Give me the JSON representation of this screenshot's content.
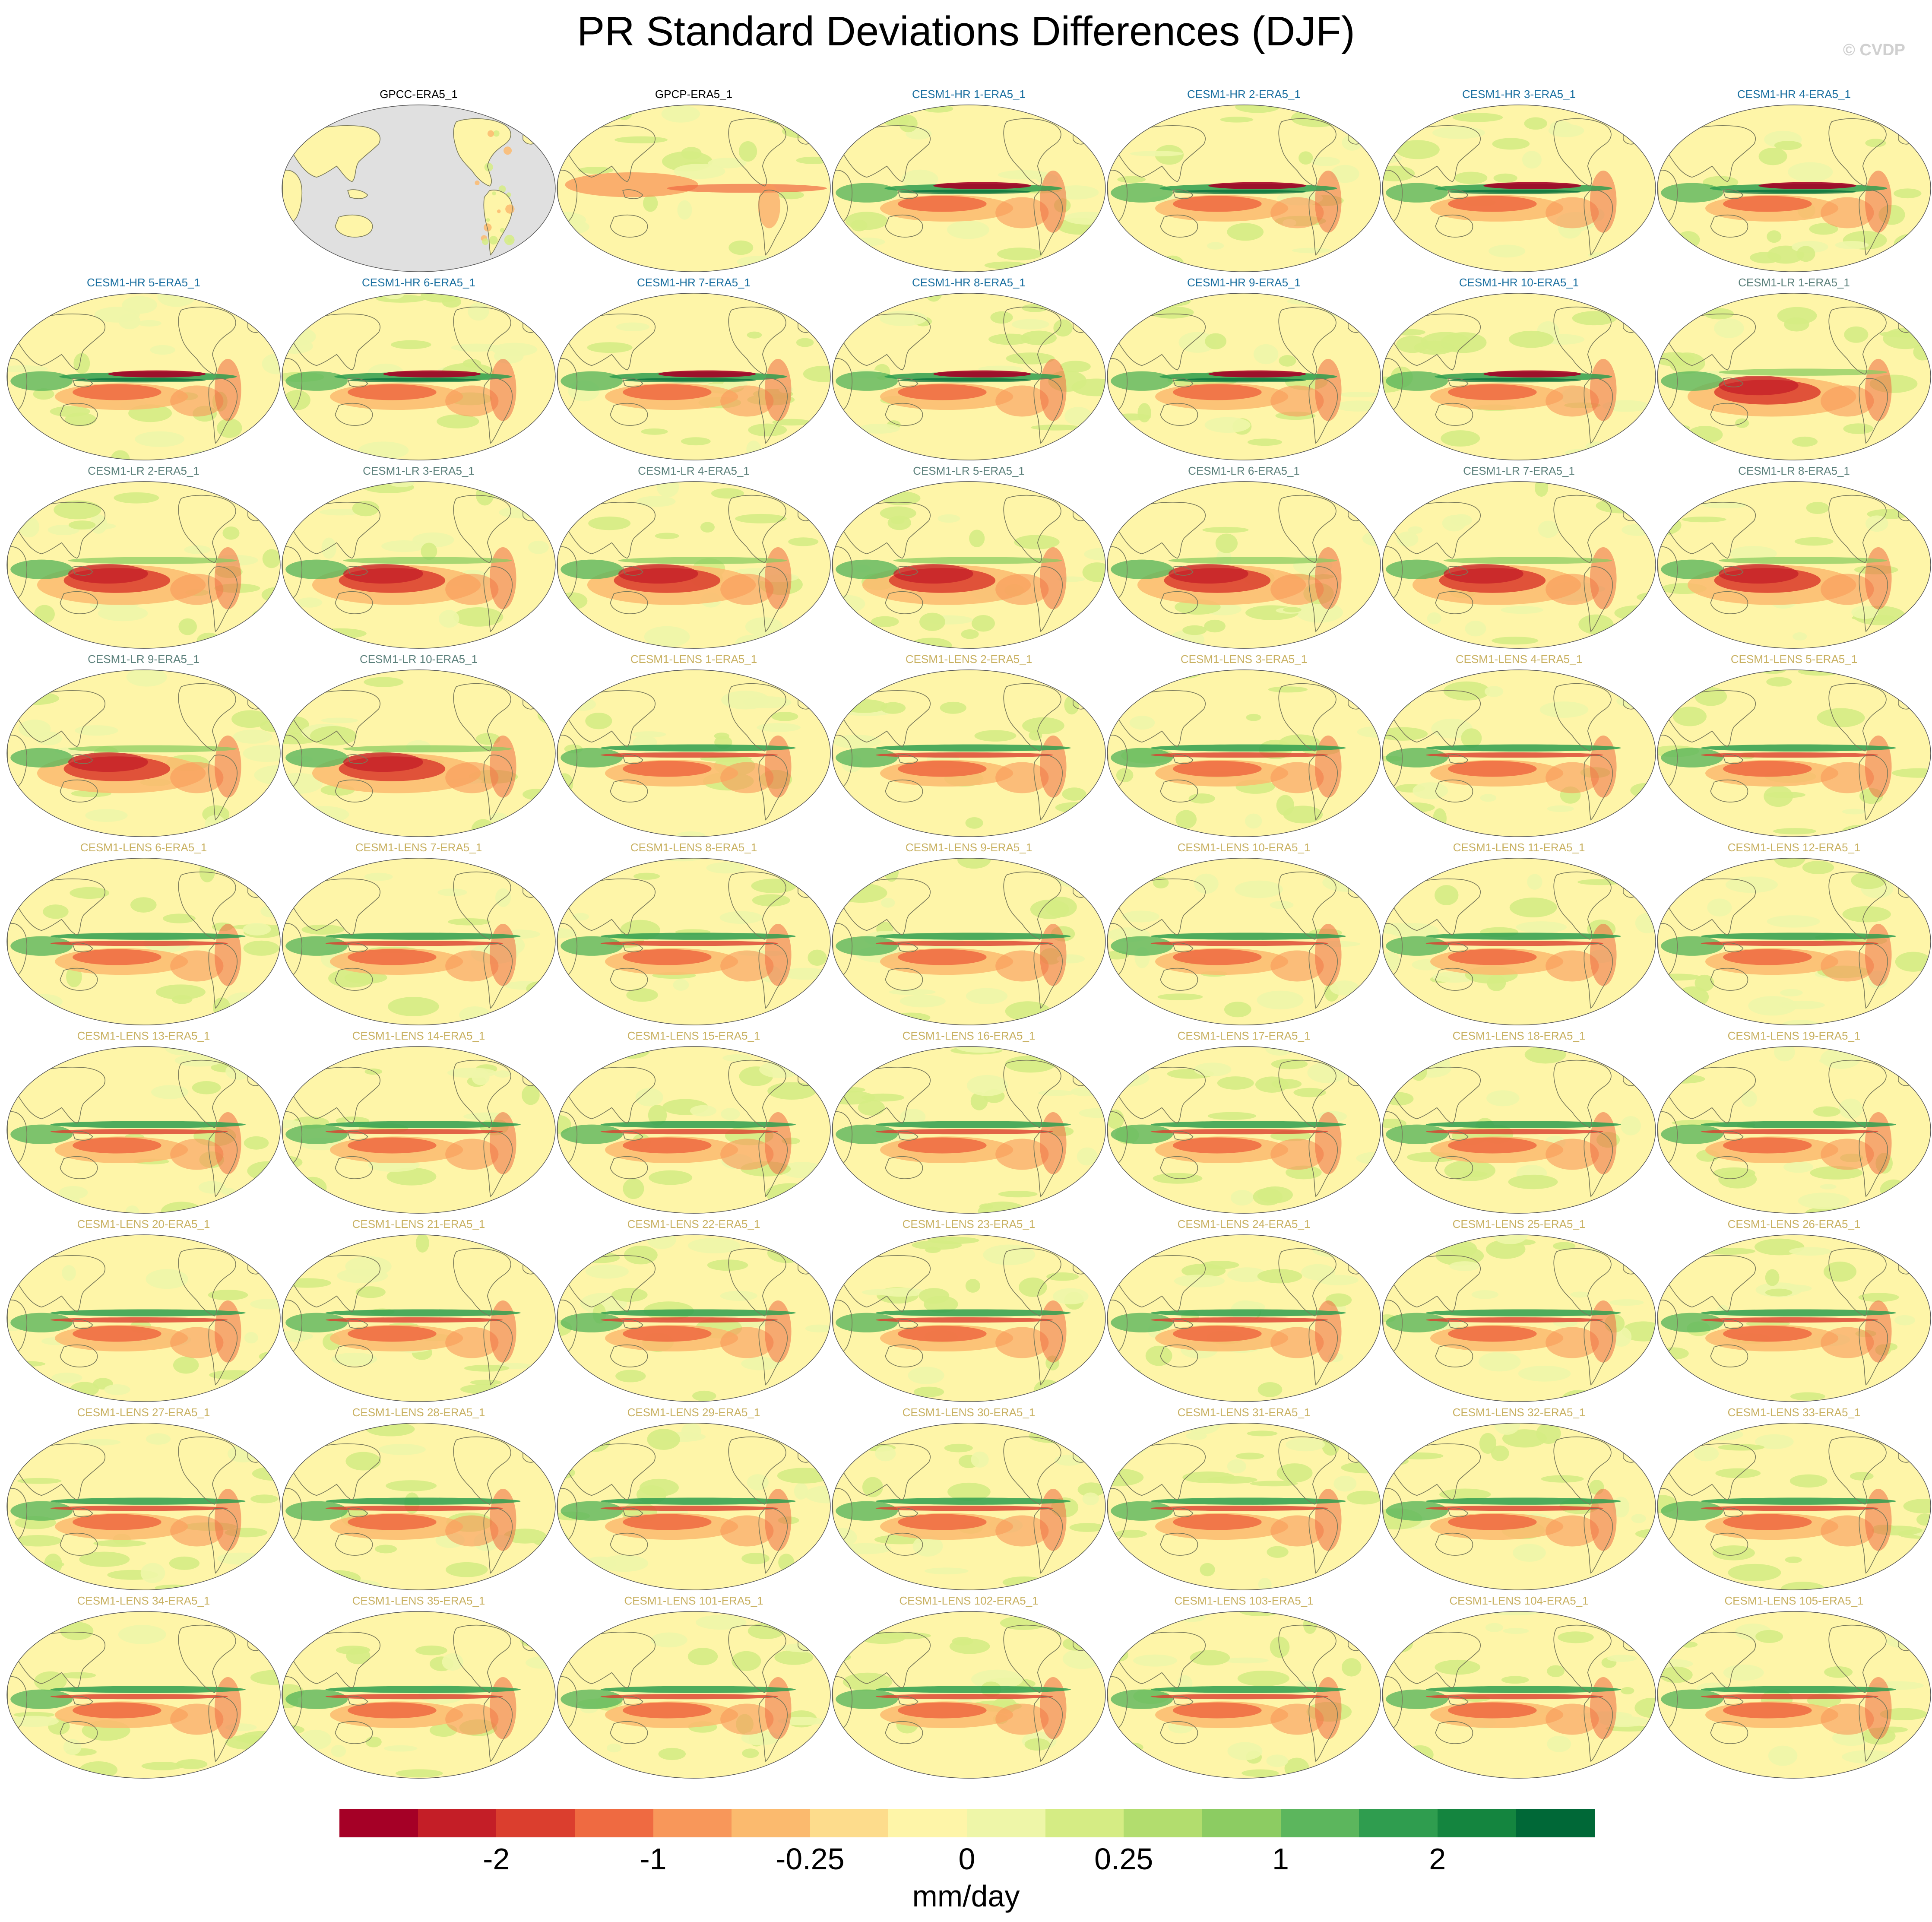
{
  "title": "PR Standard Deviations Differences (DJF)",
  "watermark": "© CVDP",
  "colors": {
    "obs_title": "#000000",
    "hr_title": "#1a6fa0",
    "lr_title": "#5a7f7a",
    "lens_title": "#c8b060",
    "ocean_obs": "#e0e0e0",
    "coast": "#7a7a5a"
  },
  "panels": [
    {
      "label": "GPCC-ERA5_1",
      "group": "obs",
      "mask": "land"
    },
    {
      "label": "GPCP-ERA5_1",
      "group": "obs",
      "mask": "full"
    },
    {
      "label": "CESM1-HR 1-ERA5_1",
      "group": "hr"
    },
    {
      "label": "CESM1-HR 2-ERA5_1",
      "group": "hr"
    },
    {
      "label": "CESM1-HR 3-ERA5_1",
      "group": "hr"
    },
    {
      "label": "CESM1-HR 4-ERA5_1",
      "group": "hr"
    },
    {
      "label": "CESM1-HR 5-ERA5_1",
      "group": "hr"
    },
    {
      "label": "CESM1-HR 6-ERA5_1",
      "group": "hr"
    },
    {
      "label": "CESM1-HR 7-ERA5_1",
      "group": "hr"
    },
    {
      "label": "CESM1-HR 8-ERA5_1",
      "group": "hr"
    },
    {
      "label": "CESM1-HR 9-ERA5_1",
      "group": "hr"
    },
    {
      "label": "CESM1-HR 10-ERA5_1",
      "group": "hr"
    },
    {
      "label": "CESM1-LR 1-ERA5_1",
      "group": "lr"
    },
    {
      "label": "CESM1-LR 2-ERA5_1",
      "group": "lr"
    },
    {
      "label": "CESM1-LR 3-ERA5_1",
      "group": "lr"
    },
    {
      "label": "CESM1-LR 4-ERA5_1",
      "group": "lr"
    },
    {
      "label": "CESM1-LR 5-ERA5_1",
      "group": "lr"
    },
    {
      "label": "CESM1-LR 6-ERA5_1",
      "group": "lr"
    },
    {
      "label": "CESM1-LR 7-ERA5_1",
      "group": "lr"
    },
    {
      "label": "CESM1-LR 8-ERA5_1",
      "group": "lr"
    },
    {
      "label": "CESM1-LR 9-ERA5_1",
      "group": "lr"
    },
    {
      "label": "CESM1-LR 10-ERA5_1",
      "group": "lr"
    },
    {
      "label": "CESM1-LENS 1-ERA5_1",
      "group": "lens"
    },
    {
      "label": "CESM1-LENS 2-ERA5_1",
      "group": "lens"
    },
    {
      "label": "CESM1-LENS 3-ERA5_1",
      "group": "lens"
    },
    {
      "label": "CESM1-LENS 4-ERA5_1",
      "group": "lens"
    },
    {
      "label": "CESM1-LENS 5-ERA5_1",
      "group": "lens"
    },
    {
      "label": "CESM1-LENS 6-ERA5_1",
      "group": "lens"
    },
    {
      "label": "CESM1-LENS 7-ERA5_1",
      "group": "lens"
    },
    {
      "label": "CESM1-LENS 8-ERA5_1",
      "group": "lens"
    },
    {
      "label": "CESM1-LENS 9-ERA5_1",
      "group": "lens"
    },
    {
      "label": "CESM1-LENS 10-ERA5_1",
      "group": "lens"
    },
    {
      "label": "CESM1-LENS 11-ERA5_1",
      "group": "lens"
    },
    {
      "label": "CESM1-LENS 12-ERA5_1",
      "group": "lens"
    },
    {
      "label": "CESM1-LENS 13-ERA5_1",
      "group": "lens"
    },
    {
      "label": "CESM1-LENS 14-ERA5_1",
      "group": "lens"
    },
    {
      "label": "CESM1-LENS 15-ERA5_1",
      "group": "lens"
    },
    {
      "label": "CESM1-LENS 16-ERA5_1",
      "group": "lens"
    },
    {
      "label": "CESM1-LENS 17-ERA5_1",
      "group": "lens"
    },
    {
      "label": "CESM1-LENS 18-ERA5_1",
      "group": "lens"
    },
    {
      "label": "CESM1-LENS 19-ERA5_1",
      "group": "lens"
    },
    {
      "label": "CESM1-LENS 20-ERA5_1",
      "group": "lens"
    },
    {
      "label": "CESM1-LENS 21-ERA5_1",
      "group": "lens"
    },
    {
      "label": "CESM1-LENS 22-ERA5_1",
      "group": "lens"
    },
    {
      "label": "CESM1-LENS 23-ERA5_1",
      "group": "lens"
    },
    {
      "label": "CESM1-LENS 24-ERA5_1",
      "group": "lens"
    },
    {
      "label": "CESM1-LENS 25-ERA5_1",
      "group": "lens"
    },
    {
      "label": "CESM1-LENS 26-ERA5_1",
      "group": "lens"
    },
    {
      "label": "CESM1-LENS 27-ERA5_1",
      "group": "lens"
    },
    {
      "label": "CESM1-LENS 28-ERA5_1",
      "group": "lens"
    },
    {
      "label": "CESM1-LENS 29-ERA5_1",
      "group": "lens"
    },
    {
      "label": "CESM1-LENS 30-ERA5_1",
      "group": "lens"
    },
    {
      "label": "CESM1-LENS 31-ERA5_1",
      "group": "lens"
    },
    {
      "label": "CESM1-LENS 32-ERA5_1",
      "group": "lens"
    },
    {
      "label": "CESM1-LENS 33-ERA5_1",
      "group": "lens"
    },
    {
      "label": "CESM1-LENS 34-ERA5_1",
      "group": "lens"
    },
    {
      "label": "CESM1-LENS 35-ERA5_1",
      "group": "lens"
    },
    {
      "label": "CESM1-LENS 101-ERA5_1",
      "group": "lens"
    },
    {
      "label": "CESM1-LENS 102-ERA5_1",
      "group": "lens"
    },
    {
      "label": "CESM1-LENS 103-ERA5_1",
      "group": "lens"
    },
    {
      "label": "CESM1-LENS 104-ERA5_1",
      "group": "lens"
    },
    {
      "label": "CESM1-LENS 105-ERA5_1",
      "group": "lens"
    }
  ],
  "colorbar": {
    "colors": [
      "#a50026",
      "#c41e27",
      "#db3e2e",
      "#ef6a41",
      "#f8975a",
      "#fbba6e",
      "#fddc8c",
      "#fef5a8",
      "#eef6a8",
      "#d5ec84",
      "#b2dd6e",
      "#8ccc62",
      "#5cb65d",
      "#2f9d4f",
      "#14853f",
      "#006837"
    ],
    "tick_labels": [
      "-2",
      "-1",
      "-0.25",
      "0",
      "0.25",
      "1",
      "2"
    ],
    "units": "mm/day"
  }
}
